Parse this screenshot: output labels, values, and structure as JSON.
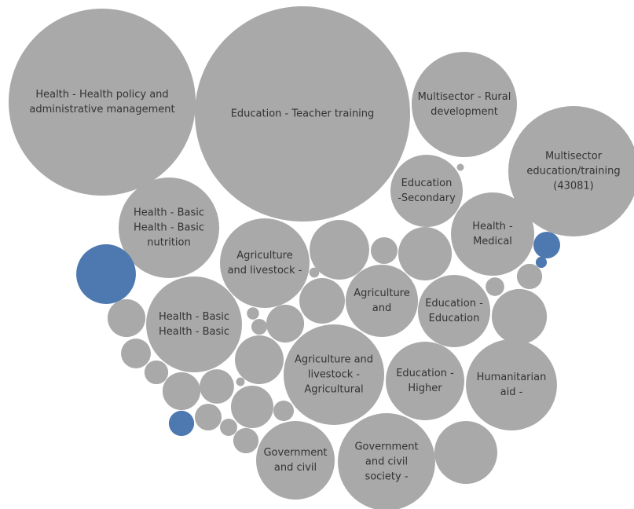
{
  "chart_data": {
    "type": "packed_bubble",
    "categories": [
      [
        "Health - Health policy and",
        "administrative management"
      ],
      [
        "Education - Teacher training"
      ],
      [
        "Multisector - Rural",
        "development"
      ],
      [
        "Multisector",
        "education/training",
        "(43081)"
      ],
      [
        "Education",
        "-Secondary"
      ],
      null,
      [
        "Health - Basic",
        "Health - Basic",
        "nutrition"
      ],
      [
        "Health -",
        "Medical"
      ],
      null,
      null,
      [
        "Agriculture",
        "and livestock -"
      ],
      null,
      null,
      null,
      null,
      null,
      null,
      null,
      [
        "Agriculture",
        "and"
      ],
      null,
      [
        "Education -",
        "Education"
      ],
      null,
      [
        "Health - Basic",
        "Health - Basic"
      ],
      null,
      null,
      null,
      null,
      null,
      [
        "Agriculture and",
        "livestock -",
        "Agricultural"
      ],
      null,
      [
        "Education -",
        "Higher"
      ],
      [
        "Humanitarian",
        "aid -"
      ],
      null,
      null,
      null,
      null,
      null,
      null,
      null,
      null,
      null,
      null,
      [
        "Government",
        "and civil"
      ],
      [
        "Government",
        "and civil",
        "society -"
      ],
      null
    ],
    "values": [
      1416,
      1877,
      449,
      689,
      212,
      2,
      410,
      281,
      29,
      5,
      325,
      144,
      29,
      116,
      144,
      4,
      26,
      14,
      212,
      84,
      212,
      123,
      372,
      58,
      6,
      10,
      58,
      36,
      410,
      96,
      250,
      336,
      23,
      58,
      48,
      3,
      73,
      17,
      26,
      29,
      12,
      26,
      250,
      384,
      160
    ],
    "colors": [
      "#a9a9a9",
      "#a9a9a9",
      "#a9a9a9",
      "#a9a9a9",
      "#a9a9a9",
      "#a9a9a9",
      "#a9a9a9",
      "#a9a9a9",
      "#4e79b0",
      "#4e79b0",
      "#a9a9a9",
      "#a9a9a9",
      "#a9a9a9",
      "#a9a9a9",
      "#4e79b0",
      "#a9a9a9",
      "#a9a9a9",
      "#a9a9a9",
      "#a9a9a9",
      "#a9a9a9",
      "#a9a9a9",
      "#a9a9a9",
      "#a9a9a9",
      "#a9a9a9",
      "#a9a9a9",
      "#a9a9a9",
      "#a9a9a9",
      "#a9a9a9",
      "#a9a9a9",
      "#a9a9a9",
      "#a9a9a9",
      "#a9a9a9",
      "#a9a9a9",
      "#a9a9a9",
      "#a9a9a9",
      "#a9a9a9",
      "#a9a9a9",
      "#a9a9a9",
      "#4e79b0",
      "#a9a9a9",
      "#a9a9a9",
      "#a9a9a9",
      "#a9a9a9",
      "#a9a9a9",
      "#a9a9a9"
    ]
  }
}
